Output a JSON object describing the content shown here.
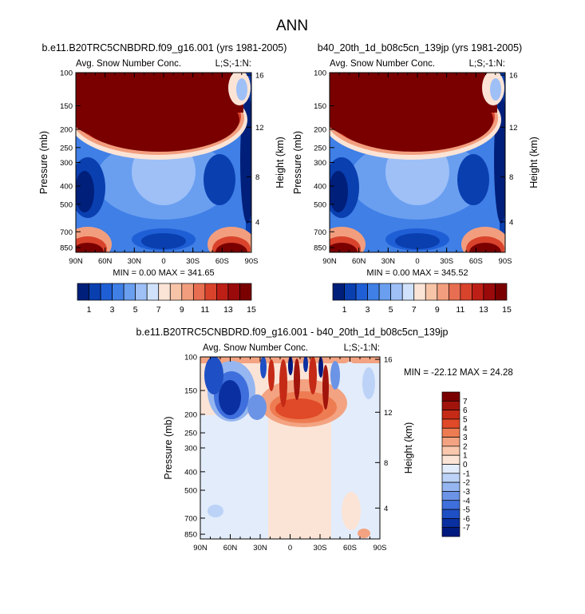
{
  "figure": {
    "title": "ANN"
  },
  "chart_data": [
    {
      "type": "heatmap",
      "title": "b.e11.B20TRC5CNBDRD.f09_g16.001 (yrs 1981-2005)",
      "subtitle_left": "Avg. Snow Number Conc.",
      "subtitle_right": "L;S;-1:N:",
      "xlabel": "",
      "ylabel": "Pressure (mb)",
      "ylabel_right": "Height (km)",
      "x_ticks": [
        "90N",
        "60N",
        "30N",
        "0",
        "30S",
        "60S",
        "90S"
      ],
      "y_ticks": [
        "100",
        "150",
        "200",
        "250",
        "300",
        "400",
        "500",
        "700",
        "850"
      ],
      "y2_ticks": [
        "16",
        "12",
        "8",
        "4"
      ],
      "stats": "MIN =   0.00  MAX = 341.65",
      "min": 0.0,
      "max": 341.65,
      "colorbar_levels": [
        0,
        1,
        2,
        3,
        4,
        5,
        6,
        7,
        8,
        9,
        10,
        11,
        12,
        13,
        14,
        15
      ],
      "colorbar_labels": [
        "1",
        "3",
        "5",
        "7",
        "9",
        "11",
        "13",
        "15"
      ]
    },
    {
      "type": "heatmap",
      "title": "b40_20th_1d_b08c5cn_139jp (yrs 1981-2005)",
      "subtitle_left": "Avg. Snow Number Conc.",
      "subtitle_right": "L;S;-1:N:",
      "xlabel": "",
      "ylabel": "Pressure (mb)",
      "ylabel_right": "Height (km)",
      "x_ticks": [
        "90N",
        "60N",
        "30N",
        "0",
        "30S",
        "60S",
        "90S"
      ],
      "y_ticks": [
        "100",
        "150",
        "200",
        "250",
        "300",
        "400",
        "500",
        "700",
        "850"
      ],
      "y2_ticks": [
        "16",
        "12",
        "8",
        "4"
      ],
      "stats": "MIN =   0.00  MAX = 345.52",
      "min": 0.0,
      "max": 345.52,
      "colorbar_levels": [
        0,
        1,
        2,
        3,
        4,
        5,
        6,
        7,
        8,
        9,
        10,
        11,
        12,
        13,
        14,
        15
      ],
      "colorbar_labels": [
        "1",
        "3",
        "5",
        "7",
        "9",
        "11",
        "13",
        "15"
      ]
    },
    {
      "type": "heatmap",
      "title": "b.e11.B20TRC5CNBDRD.f09_g16.001 - b40_20th_1d_b08c5cn_139jp",
      "subtitle_left": "Avg. Snow Number Conc.",
      "subtitle_right": "L;S;-1:N:",
      "xlabel": "",
      "ylabel": "Pressure (mb)",
      "ylabel_right": "Height (km)",
      "x_ticks": [
        "90N",
        "60N",
        "30N",
        "0",
        "30S",
        "60S",
        "90S"
      ],
      "y_ticks": [
        "100",
        "150",
        "200",
        "250",
        "300",
        "400",
        "500",
        "700",
        "850"
      ],
      "y2_ticks": [
        "16",
        "12",
        "8",
        "4"
      ],
      "stats": "MIN = -22.12  MAX =  24.28",
      "min": -22.12,
      "max": 24.28,
      "colorbar_levels": [
        7,
        6,
        5,
        4,
        3,
        2,
        1,
        0,
        -1,
        -2,
        -3,
        -4,
        -5,
        -6,
        -7
      ],
      "colorbar_labels": [
        "7",
        "6",
        "5",
        "4",
        "3",
        "2",
        "1",
        "0",
        "-1",
        "-2",
        "-3",
        "-4",
        "-5",
        "-6",
        "-7"
      ]
    }
  ],
  "colors": {
    "mean_scale": [
      "#001f7a",
      "#0a3fb0",
      "#1f5fd6",
      "#3f7fe6",
      "#6a9ff0",
      "#9ec0f7",
      "#d0e2fb",
      "#fbe4d6",
      "#f7c4a8",
      "#f29e7e",
      "#e86e51",
      "#d9432c",
      "#bd1f16",
      "#9a0a0b",
      "#7a0000"
    ],
    "diff_scale": [
      "#7a0000",
      "#a1140c",
      "#c52a16",
      "#e04a28",
      "#ee7c52",
      "#f3a381",
      "#f9c8ad",
      "#fbe4d6",
      "#e3ecfb",
      "#bcd3f7",
      "#95b6f0",
      "#6b94e6",
      "#3f6fdc",
      "#1f4fc4",
      "#0a2fa0",
      "#001a80"
    ]
  }
}
